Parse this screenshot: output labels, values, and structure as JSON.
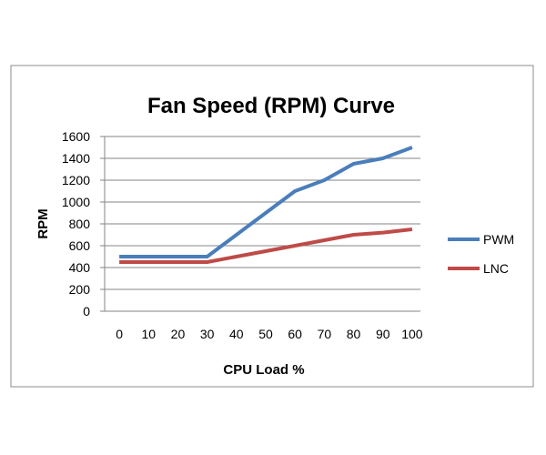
{
  "chart_data": {
    "type": "line",
    "title": "Fan Speed (RPM) Curve",
    "xlabel": "CPU Load %",
    "ylabel": "RPM",
    "categories": [
      "0",
      "10",
      "20",
      "30",
      "40",
      "50",
      "60",
      "70",
      "80",
      "90",
      "100"
    ],
    "yticks": [
      "0",
      "200",
      "400",
      "600",
      "800",
      "1000",
      "1200",
      "1400",
      "1600"
    ],
    "ylim": [
      0,
      1600
    ],
    "grid": true,
    "legend_position": "right",
    "series": [
      {
        "name": "PWM",
        "color": "#4A7EBB",
        "values": [
          500,
          500,
          500,
          500,
          700,
          900,
          1100,
          1200,
          1350,
          1400,
          1500
        ]
      },
      {
        "name": "LNC",
        "color": "#BE4B48",
        "values": [
          450,
          450,
          450,
          450,
          500,
          550,
          600,
          650,
          700,
          720,
          750
        ]
      }
    ]
  }
}
